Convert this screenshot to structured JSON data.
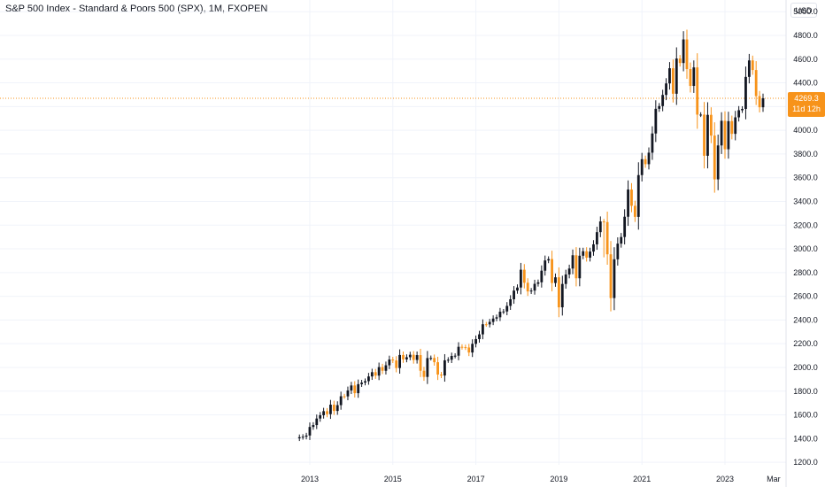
{
  "title": "S&P 500 Index - Standard & Poors 500 (SPX), 1M, FXOPEN",
  "currency": "USD",
  "last_price": {
    "value": "4269.3",
    "countdown": "11d 12h"
  },
  "colors": {
    "up": "#131722",
    "down": "#f7931a",
    "grid": "#f0f3fa",
    "axis_text": "#131722",
    "price_line": "#f7931a"
  },
  "chart_data": {
    "type": "candlestick",
    "title": "S&P 500 Index - Standard & Poors 500 (SPX), 1M, FXOPEN",
    "xlabel": "",
    "ylabel": "",
    "ylim": [
      1100,
      5050
    ],
    "y_ticks": [
      1200,
      1400,
      1600,
      1800,
      2000,
      2200,
      2400,
      2600,
      2800,
      3000,
      3200,
      3400,
      3600,
      3800,
      4000,
      4200,
      4400,
      4600,
      4800,
      5000
    ],
    "y_tick_labels": [
      "1200.0",
      "1400.0",
      "1600.0",
      "1800.0",
      "2000.0",
      "2200.0",
      "2400.0",
      "2600.0",
      "2800.0",
      "3000.0",
      "3200.0",
      "3400.0",
      "3600.0",
      "3800.0",
      "4000.0",
      "4200.0",
      "4400.0",
      "4600.0",
      "4800.0",
      "5000.0"
    ],
    "x_ticks": [
      {
        "label": "2013",
        "pos": 2013.0
      },
      {
        "label": "2015",
        "pos": 2015.0
      },
      {
        "label": "2017",
        "pos": 2017.0
      },
      {
        "label": "2019",
        "pos": 2019.0
      },
      {
        "label": "2021",
        "pos": 2021.0
      },
      {
        "label": "2023",
        "pos": 2023.0
      },
      {
        "label": "Mar",
        "pos": 2024.17
      }
    ],
    "x_range": [
      2011.55,
      2024.5
    ],
    "grid": true,
    "first_period": "2012-10",
    "closes": [
      1412,
      1416,
      1426,
      1498,
      1514,
      1569,
      1597,
      1631,
      1606,
      1686,
      1633,
      1682,
      1757,
      1756,
      1806,
      1848,
      1783,
      1859,
      1872,
      1884,
      1924,
      1960,
      1931,
      2003,
      1972,
      2018,
      2067,
      2059,
      1995,
      2105,
      2068,
      2086,
      2107,
      2063,
      2104,
      1972,
      1920,
      2079,
      2080,
      2044,
      1940,
      1932,
      2060,
      2065,
      2097,
      2099,
      2174,
      2171,
      2168,
      2126,
      2199,
      2239,
      2279,
      2364,
      2363,
      2384,
      2412,
      2423,
      2470,
      2472,
      2519,
      2575,
      2648,
      2674,
      2824,
      2714,
      2641,
      2648,
      2705,
      2718,
      2816,
      2902,
      2914,
      2712,
      2760,
      2507,
      2704,
      2784,
      2834,
      2946,
      2752,
      2942,
      2980,
      2926,
      2977,
      3038,
      3141,
      3231,
      3226,
      2954,
      2585,
      2912,
      3044,
      3100,
      3271,
      3500,
      3363,
      3270,
      3622,
      3756,
      3714,
      3811,
      3973,
      4181,
      4204,
      4298,
      4395,
      4523,
      4308,
      4605,
      4567,
      4766,
      4516,
      4374,
      4530,
      4132,
      4132,
      3785,
      4130,
      3955,
      3586,
      3872,
      4080,
      3840,
      4077,
      3970,
      4109,
      4169,
      4180,
      4450,
      4589,
      4508,
      4288,
      4194,
      4270
    ],
    "series": [
      {
        "name": "S&P 500 Index - Standard & Poors 500 (SPX), 1M, FXOPEN",
        "note": "monthly OHLC candles; open = previous close"
      }
    ],
    "annotations": [
      "4269.3",
      "11d 12h"
    ]
  }
}
